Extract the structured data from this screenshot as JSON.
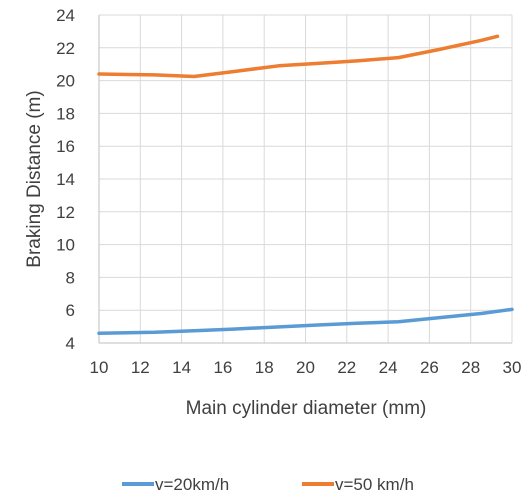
{
  "chart_data": {
    "type": "line",
    "title": "",
    "xlabel": "Main cylinder diameter (mm)",
    "ylabel": "Braking Distance (m)",
    "xlim": [
      10,
      30
    ],
    "ylim": [
      4,
      24
    ],
    "xticks": [
      10,
      12,
      14,
      16,
      18,
      20,
      22,
      24,
      26,
      28,
      30
    ],
    "yticks": [
      4,
      6,
      8,
      10,
      12,
      14,
      16,
      18,
      20,
      22,
      24
    ],
    "grid": true,
    "legend_position": "bottom",
    "series": [
      {
        "name": "v=20km/h",
        "color": "#5B9BD5",
        "x": [
          10,
          12.7,
          14.6,
          16.5,
          18.5,
          20.6,
          22.5,
          24.5,
          26.5,
          28.5,
          30
        ],
        "y": [
          4.6,
          4.65,
          4.75,
          4.85,
          4.97,
          5.1,
          5.2,
          5.3,
          5.55,
          5.8,
          6.05
        ]
      },
      {
        "name": "v=50 km/h",
        "color": "#ED7D31",
        "x": [
          10,
          12.7,
          14.6,
          16.5,
          18.7,
          20.6,
          22.5,
          24.5,
          26.5,
          28.5,
          29.3
        ],
        "y": [
          20.4,
          20.35,
          20.25,
          20.55,
          20.9,
          21.05,
          21.2,
          21.4,
          21.9,
          22.45,
          22.7
        ]
      }
    ]
  }
}
